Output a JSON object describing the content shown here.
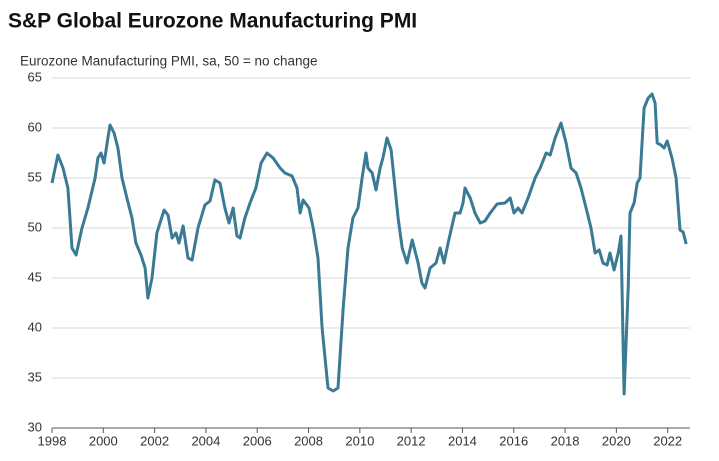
{
  "chart_data": {
    "type": "line",
    "title": "S&P Global Eurozone Manufacturing PMI",
    "subtitle": "Eurozone Manufacturing PMI, sa, 50 = no change",
    "x": [
      1998,
      1998.23,
      1998.43,
      1998.62,
      1998.78,
      1998.94,
      1999.17,
      1999.4,
      1999.68,
      1999.79,
      1999.91,
      2000.03,
      2000.18,
      2000.26,
      2000.42,
      2000.57,
      2000.73,
      2000.92,
      2001.12,
      2001.27,
      2001.47,
      2001.63,
      2001.74,
      2001.9,
      2002.09,
      2002.37,
      2002.52,
      2002.68,
      2002.83,
      2002.95,
      2003.11,
      2003.3,
      2003.46,
      2003.69,
      2003.96,
      2004.16,
      2004.35,
      2004.55,
      2004.74,
      2004.9,
      2005.06,
      2005.21,
      2005.33,
      2005.52,
      2005.72,
      2005.95,
      2006.15,
      2006.38,
      2006.62,
      2006.89,
      2007.08,
      2007.36,
      2007.55,
      2007.67,
      2007.79,
      2008.02,
      2008.18,
      2008.37,
      2008.53,
      2008.76,
      2008.96,
      2009.15,
      2009.35,
      2009.54,
      2009.73,
      2009.93,
      2010.09,
      2010.24,
      2010.32,
      2010.48,
      2010.63,
      2010.79,
      2010.9,
      2011.06,
      2011.22,
      2011.33,
      2011.49,
      2011.65,
      2011.84,
      2012.04,
      2012.27,
      2012.42,
      2012.54,
      2012.74,
      2012.97,
      2013.13,
      2013.28,
      2013.44,
      2013.71,
      2013.91,
      2014.02,
      2014.1,
      2014.3,
      2014.49,
      2014.69,
      2014.88,
      2015.08,
      2015.35,
      2015.66,
      2015.86,
      2016.01,
      2016.17,
      2016.32,
      2016.56,
      2016.83,
      2017.03,
      2017.26,
      2017.42,
      2017.61,
      2017.84,
      2018.04,
      2018.23,
      2018.43,
      2018.62,
      2018.82,
      2019.01,
      2019.17,
      2019.33,
      2019.48,
      2019.64,
      2019.75,
      2019.91,
      2020.07,
      2020.18,
      2020.3,
      2020.46,
      2020.53,
      2020.69,
      2020.81,
      2020.92,
      2021.08,
      2021.24,
      2021.39,
      2021.51,
      2021.59,
      2021.74,
      2021.86,
      2021.98,
      2022.17,
      2022.33,
      2022.48,
      2022.6,
      2022.72
    ],
    "series": [
      {
        "color": "#3b7a95",
        "values": [
          54.5,
          57.3,
          56,
          54,
          48,
          47.3,
          50,
          52,
          55,
          57,
          57.5,
          56.5,
          59,
          60.3,
          59.5,
          58,
          55,
          53,
          51,
          48.5,
          47.3,
          46,
          43,
          45,
          49.5,
          51.8,
          51.3,
          49,
          49.5,
          48.5,
          50.2,
          47,
          46.8,
          50,
          52.3,
          52.7,
          54.8,
          54.5,
          52,
          50.5,
          52,
          49.2,
          49,
          51,
          52.5,
          54,
          56.5,
          57.5,
          57,
          56,
          55.5,
          55.2,
          54,
          51.5,
          52.8,
          52,
          50,
          47,
          40,
          34,
          33.7,
          34,
          42,
          48,
          51,
          52,
          55,
          57.5,
          56,
          55.5,
          53.8,
          56,
          57,
          59,
          57.8,
          55,
          51,
          48,
          46.5,
          48.8,
          46.5,
          44.5,
          44,
          46,
          46.5,
          48,
          46.5,
          48.5,
          51.5,
          51.5,
          52.5,
          54,
          53,
          51.5,
          50.5,
          50.7,
          51.5,
          52.4,
          52.5,
          53,
          51.5,
          52,
          51.5,
          53,
          55,
          56,
          57.5,
          57.3,
          59,
          60.5,
          58.5,
          56,
          55.5,
          54,
          52,
          50,
          47.5,
          47.8,
          46.5,
          46.3,
          47.5,
          45.8,
          47.5,
          49.2,
          33.4,
          44,
          51.5,
          52.5,
          54.5,
          55,
          62,
          63,
          63.4,
          62.5,
          58.5,
          58.3,
          58,
          58.7,
          57,
          55,
          49.8,
          49.6,
          48.4
        ]
      }
    ],
    "xlim": [
      1998,
      2022.87
    ],
    "xticks": [
      1998,
      2000,
      2002,
      2004,
      2006,
      2008,
      2010,
      2012,
      2014,
      2016,
      2018,
      2020,
      2022
    ],
    "ylim": [
      30,
      65
    ],
    "yticks": [
      30,
      35,
      40,
      45,
      50,
      55,
      60,
      65
    ],
    "grid": true
  }
}
